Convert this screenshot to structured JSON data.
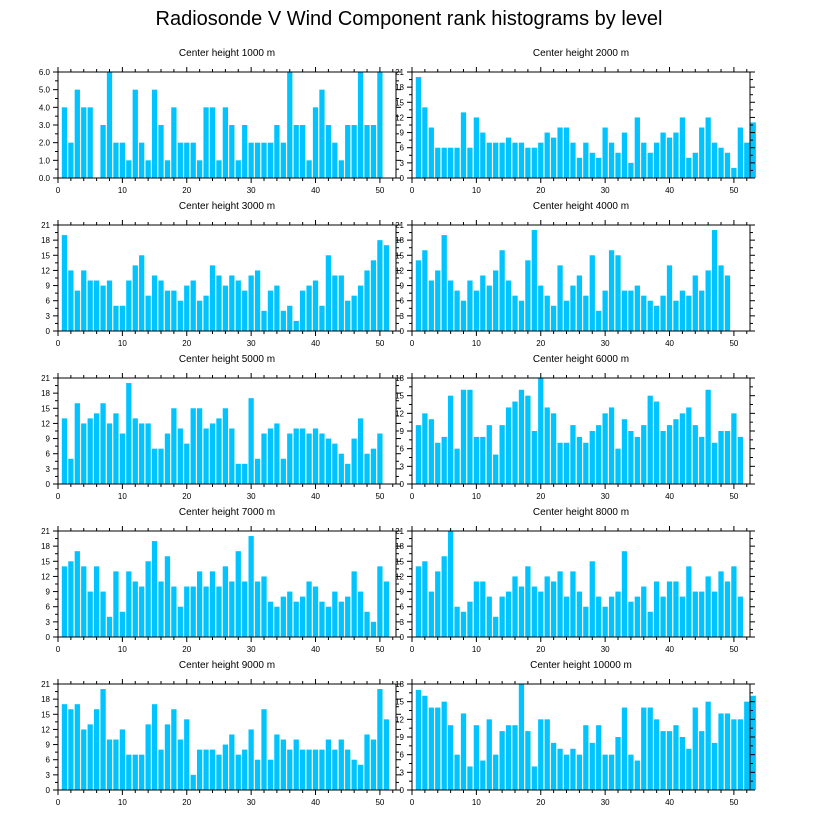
{
  "title": "Radiosonde V Wind Component rank histograms by level",
  "colors": {
    "bar": "#00c4ff",
    "axis": "#000000",
    "background": "#ffffff"
  },
  "chart_data": [
    {
      "type": "bar",
      "title": "Center height 1000 m",
      "ylim": [
        0,
        6
      ],
      "yticks": [
        "0.0",
        "1.0",
        "2.0",
        "3.0",
        "4.0",
        "5.0",
        "6.0"
      ],
      "xticks": [
        0,
        10,
        20,
        30,
        40,
        50
      ],
      "x_start": 1,
      "values": [
        4,
        2,
        5,
        4,
        4,
        0,
        3,
        6,
        2,
        2,
        1,
        5,
        2,
        1,
        5,
        3,
        1,
        4,
        2,
        2,
        2,
        1,
        4,
        4,
        1,
        4,
        3,
        1,
        3,
        2,
        2,
        2,
        2,
        3,
        2,
        6,
        3,
        3,
        1,
        4,
        5,
        3,
        2,
        1,
        3,
        3,
        6,
        3,
        3,
        6
      ]
    },
    {
      "type": "bar",
      "title": "Center height 2000 m",
      "ylim": [
        0,
        21
      ],
      "yticks": [
        "0",
        "3",
        "6",
        "9",
        "12",
        "15",
        "18",
        "21"
      ],
      "xticks": [
        0,
        10,
        20,
        30,
        40,
        50
      ],
      "x_start": 1,
      "values": [
        20,
        14,
        10,
        6,
        6,
        6,
        6,
        13,
        6,
        12,
        9,
        7,
        7,
        7,
        8,
        7,
        7,
        6,
        6,
        7,
        9,
        8,
        10,
        10,
        7,
        4,
        7,
        5,
        4,
        10,
        7,
        5,
        9,
        3,
        12,
        7,
        5,
        7,
        9,
        8,
        9,
        12,
        4,
        5,
        10,
        12,
        7,
        6,
        5,
        2,
        10,
        7,
        11
      ]
    },
    {
      "type": "bar",
      "title": "Center height 3000 m",
      "ylim": [
        0,
        21
      ],
      "yticks": [
        "0",
        "3",
        "6",
        "9",
        "12",
        "15",
        "18",
        "21"
      ],
      "xticks": [
        0,
        10,
        20,
        30,
        40,
        50
      ],
      "x_start": 1,
      "values": [
        19,
        12,
        8,
        12,
        10,
        10,
        9,
        10,
        5,
        5,
        10,
        13,
        15,
        7,
        11,
        10,
        8,
        8,
        6,
        9,
        10,
        6,
        7,
        13,
        11,
        9,
        11,
        10,
        8,
        11,
        12,
        4,
        8,
        9,
        4,
        5,
        2,
        8,
        9,
        10,
        5,
        15,
        11,
        11,
        6,
        7,
        9,
        12,
        14,
        18,
        17
      ]
    },
    {
      "type": "bar",
      "title": "Center height 4000 m",
      "ylim": [
        0,
        21
      ],
      "yticks": [
        "0",
        "3",
        "6",
        "9",
        "12",
        "15",
        "18",
        "21"
      ],
      "xticks": [
        0,
        10,
        20,
        30,
        40,
        50
      ],
      "x_start": 1,
      "values": [
        14,
        16,
        10,
        12,
        19,
        10,
        8,
        6,
        10,
        8,
        11,
        9,
        12,
        16,
        10,
        7,
        6,
        14,
        20,
        9,
        7,
        5,
        13,
        6,
        9,
        11,
        7,
        15,
        4,
        8,
        16,
        15,
        8,
        8,
        9,
        7,
        6,
        5,
        7,
        13,
        6,
        8,
        7,
        11,
        8,
        12,
        20,
        13,
        11
      ]
    },
    {
      "type": "bar",
      "title": "Center height 5000 m",
      "ylim": [
        0,
        21
      ],
      "yticks": [
        "0",
        "3",
        "6",
        "9",
        "12",
        "15",
        "18",
        "21"
      ],
      "xticks": [
        0,
        10,
        20,
        30,
        40,
        50
      ],
      "x_start": 1,
      "values": [
        13,
        5,
        16,
        12,
        13,
        14,
        16,
        12,
        14,
        10,
        20,
        13,
        12,
        12,
        7,
        7,
        10,
        15,
        11,
        8,
        15,
        15,
        11,
        12,
        13,
        15,
        11,
        4,
        4,
        17,
        5,
        10,
        11,
        12,
        5,
        10,
        11,
        11,
        10,
        11,
        10,
        9,
        8,
        6,
        4,
        9,
        13,
        6,
        7,
        10
      ]
    },
    {
      "type": "bar",
      "title": "Center height 6000 m",
      "ylim": [
        0,
        18
      ],
      "yticks": [
        "0",
        "3",
        "6",
        "9",
        "12",
        "15",
        "18"
      ],
      "xticks": [
        0,
        10,
        20,
        30,
        40,
        50
      ],
      "x_start": 1,
      "values": [
        10,
        12,
        11,
        7,
        8,
        15,
        6,
        16,
        16,
        8,
        8,
        10,
        5,
        10,
        13,
        14,
        16,
        15,
        9,
        18,
        13,
        12,
        7,
        7,
        10,
        8,
        7,
        9,
        10,
        12,
        13,
        6,
        11,
        9,
        8,
        10,
        15,
        14,
        9,
        10,
        11,
        12,
        13,
        10,
        8,
        16,
        7,
        9,
        9,
        12,
        8
      ]
    },
    {
      "type": "bar",
      "title": "Center height 7000 m",
      "ylim": [
        0,
        21
      ],
      "yticks": [
        "0",
        "3",
        "6",
        "9",
        "12",
        "15",
        "18",
        "21"
      ],
      "xticks": [
        0,
        10,
        20,
        30,
        40,
        50
      ],
      "x_start": 1,
      "values": [
        14,
        15,
        17,
        14,
        9,
        14,
        9,
        4,
        13,
        5,
        13,
        11,
        10,
        15,
        19,
        11,
        16,
        10,
        6,
        10,
        10,
        13,
        10,
        13,
        10,
        14,
        11,
        17,
        11,
        20,
        11,
        12,
        7,
        6,
        8,
        9,
        7,
        8,
        11,
        10,
        7,
        6,
        9,
        7,
        8,
        13,
        9,
        5,
        3,
        14,
        11
      ]
    },
    {
      "type": "bar",
      "title": "Center height 8000 m",
      "ylim": [
        0,
        21
      ],
      "yticks": [
        "0",
        "3",
        "6",
        "9",
        "12",
        "15",
        "18",
        "21"
      ],
      "xticks": [
        0,
        10,
        20,
        30,
        40,
        50
      ],
      "x_start": 1,
      "values": [
        14,
        15,
        9,
        13,
        16,
        21,
        6,
        5,
        7,
        11,
        11,
        8,
        4,
        8,
        9,
        12,
        10,
        14,
        10,
        9,
        12,
        11,
        13,
        8,
        13,
        9,
        6,
        15,
        8,
        6,
        8,
        9,
        17,
        7,
        8,
        10,
        5,
        11,
        8,
        11,
        11,
        8,
        14,
        9,
        9,
        12,
        9,
        13,
        11,
        14,
        8
      ]
    },
    {
      "type": "bar",
      "title": "Center height 9000 m",
      "ylim": [
        0,
        21
      ],
      "yticks": [
        "0",
        "3",
        "6",
        "9",
        "12",
        "15",
        "18",
        "21"
      ],
      "xticks": [
        0,
        10,
        20,
        30,
        40,
        50
      ],
      "x_start": 1,
      "values": [
        17,
        16,
        17,
        12,
        13,
        16,
        20,
        10,
        10,
        12,
        7,
        7,
        7,
        13,
        17,
        8,
        13,
        16,
        10,
        14,
        3,
        8,
        8,
        8,
        7,
        9,
        11,
        7,
        8,
        12,
        6,
        16,
        6,
        11,
        10,
        8,
        10,
        8,
        8,
        8,
        8,
        10,
        8,
        10,
        8,
        6,
        5,
        11,
        10,
        20,
        14
      ]
    },
    {
      "type": "bar",
      "title": "Center height 10000 m",
      "ylim": [
        0,
        18
      ],
      "yticks": [
        "0",
        "3",
        "6",
        "9",
        "12",
        "15",
        "18"
      ],
      "xticks": [
        0,
        10,
        20,
        30,
        40,
        50
      ],
      "x_start": 1,
      "values": [
        17,
        16,
        14,
        14,
        15,
        11,
        6,
        13,
        4,
        11,
        5,
        12,
        6,
        10,
        11,
        11,
        18,
        10,
        4,
        12,
        12,
        8,
        7,
        6,
        7,
        6,
        11,
        8,
        11,
        6,
        6,
        9,
        14,
        6,
        5,
        14,
        14,
        12,
        10,
        10,
        11,
        9,
        7,
        14,
        10,
        15,
        8,
        13,
        13,
        12,
        12,
        15,
        16
      ]
    }
  ]
}
